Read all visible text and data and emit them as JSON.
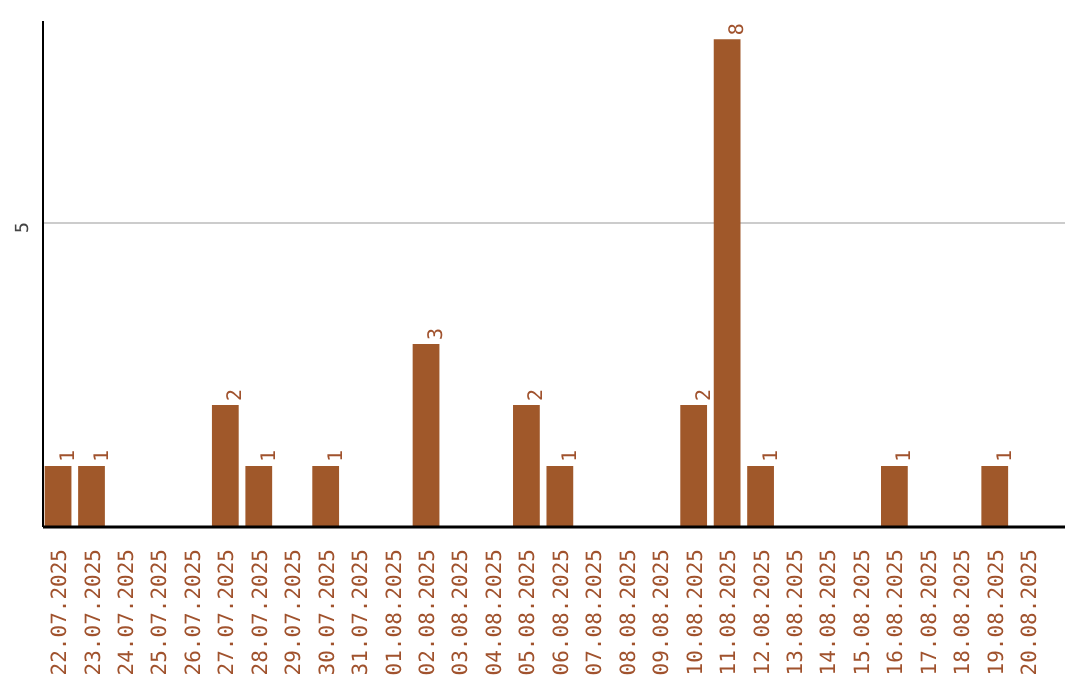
{
  "chart_data": {
    "type": "bar",
    "categories": [
      "22.07.2025",
      "23.07.2025",
      "24.07.2025",
      "25.07.2025",
      "26.07.2025",
      "27.07.2025",
      "28.07.2025",
      "29.07.2025",
      "30.07.2025",
      "31.07.2025",
      "01.08.2025",
      "02.08.2025",
      "03.08.2025",
      "04.08.2025",
      "05.08.2025",
      "06.08.2025",
      "07.08.2025",
      "08.08.2025",
      "09.08.2025",
      "10.08.2025",
      "11.08.2025",
      "12.08.2025",
      "13.08.2025",
      "14.08.2025",
      "15.08.2025",
      "16.08.2025",
      "17.08.2025",
      "18.08.2025",
      "19.08.2025",
      "20.08.2025"
    ],
    "values": [
      1,
      1,
      0,
      0,
      0,
      2,
      1,
      0,
      1,
      0,
      0,
      3,
      0,
      0,
      2,
      1,
      0,
      0,
      0,
      2,
      8,
      1,
      0,
      0,
      0,
      1,
      0,
      0,
      1,
      0
    ],
    "value_labels": [
      "1",
      "1",
      null,
      null,
      null,
      "2",
      "1",
      null,
      "1",
      null,
      null,
      "3",
      null,
      null,
      "2",
      "1",
      null,
      null,
      null,
      "2",
      "8",
      "1",
      null,
      null,
      null,
      "1",
      null,
      null,
      "1",
      null
    ],
    "color": "#a0582a",
    "ylim": [
      0,
      8.3
    ],
    "yticks": [
      5
    ],
    "grid": "y"
  }
}
